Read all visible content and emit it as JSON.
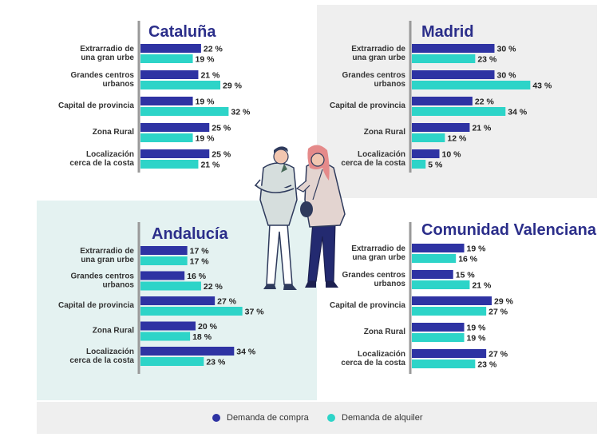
{
  "colors": {
    "compra": "#2e33a3",
    "alquiler": "#2dd4c8",
    "axis": "#999999",
    "title": "#2b2e8a"
  },
  "legend": {
    "compra": "Demanda de compra",
    "alquiler": "Demanda de alquiler"
  },
  "chart_data": [
    {
      "type": "bar",
      "title": "Cataluña",
      "categories": [
        [
          "Extrarradio de",
          "una gran urbe"
        ],
        [
          "Grandes centros",
          "urbanos"
        ],
        [
          "Capital de provincia"
        ],
        [
          "Zona Rural"
        ],
        [
          "Localización",
          "cerca de la costa"
        ]
      ],
      "series": [
        {
          "name": "Demanda de compra",
          "values": [
            22,
            21,
            19,
            25,
            25
          ],
          "labels": [
            "22 %",
            "21 %",
            "19 %",
            "25 %",
            "25 %"
          ]
        },
        {
          "name": "Demanda de alquiler",
          "values": [
            19,
            29,
            32,
            19,
            21
          ],
          "labels": [
            "19 %",
            "29 %",
            "32 %",
            "19 %",
            "21 %"
          ]
        }
      ]
    },
    {
      "type": "bar",
      "title": "Madrid",
      "categories": [
        [
          "Extrarradio de",
          "una gran urbe"
        ],
        [
          "Grandes centros",
          "urbanos"
        ],
        [
          "Capital de provincia"
        ],
        [
          "Zona Rural"
        ],
        [
          "Localización",
          "cerca de la costa"
        ]
      ],
      "series": [
        {
          "name": "Demanda de compra",
          "values": [
            30,
            30,
            22,
            21,
            10
          ],
          "labels": [
            "30 %",
            "30 %",
            "22 %",
            "21 %",
            "10 %"
          ]
        },
        {
          "name": "Demanda de alquiler",
          "values": [
            23,
            43,
            34,
            12,
            5
          ],
          "labels": [
            "23 %",
            "43 %",
            "34 %",
            "12 %",
            "5 %"
          ]
        }
      ]
    },
    {
      "type": "bar",
      "title": "Andalucía",
      "categories": [
        [
          "Extrarradio de",
          "una gran urbe"
        ],
        [
          "Grandes centros",
          "urbanos"
        ],
        [
          "Capital de provincia"
        ],
        [
          "Zona Rural"
        ],
        [
          "Localización",
          "cerca de la costa"
        ]
      ],
      "series": [
        {
          "name": "Demanda de compra",
          "values": [
            17,
            16,
            27,
            20,
            34
          ],
          "labels": [
            "17 %",
            "16 %",
            "27 %",
            "20 %",
            "34 %"
          ]
        },
        {
          "name": "Demanda de alquiler",
          "values": [
            17,
            22,
            37,
            18,
            23
          ],
          "labels": [
            "17 %",
            "22 %",
            "37 %",
            "18 %",
            "23 %"
          ]
        }
      ]
    },
    {
      "type": "bar",
      "title": "Comunidad Valenciana",
      "categories": [
        [
          "Extrarradio de",
          "una gran urbe"
        ],
        [
          "Grandes centros",
          "urbanos"
        ],
        [
          "Capital de provincia"
        ],
        [
          "Zona Rural"
        ],
        [
          "Localización",
          "cerca de la costa"
        ]
      ],
      "series": [
        {
          "name": "Demanda de compra",
          "values": [
            19,
            15,
            29,
            19,
            27
          ],
          "labels": [
            "19 %",
            "15 %",
            "29 %",
            "19 %",
            "27 %"
          ]
        },
        {
          "name": "Demanda de alquiler",
          "values": [
            16,
            21,
            27,
            19,
            23
          ],
          "labels": [
            "16 %",
            "21 %",
            "27 %",
            "19 %",
            "23 %"
          ]
        }
      ]
    }
  ]
}
